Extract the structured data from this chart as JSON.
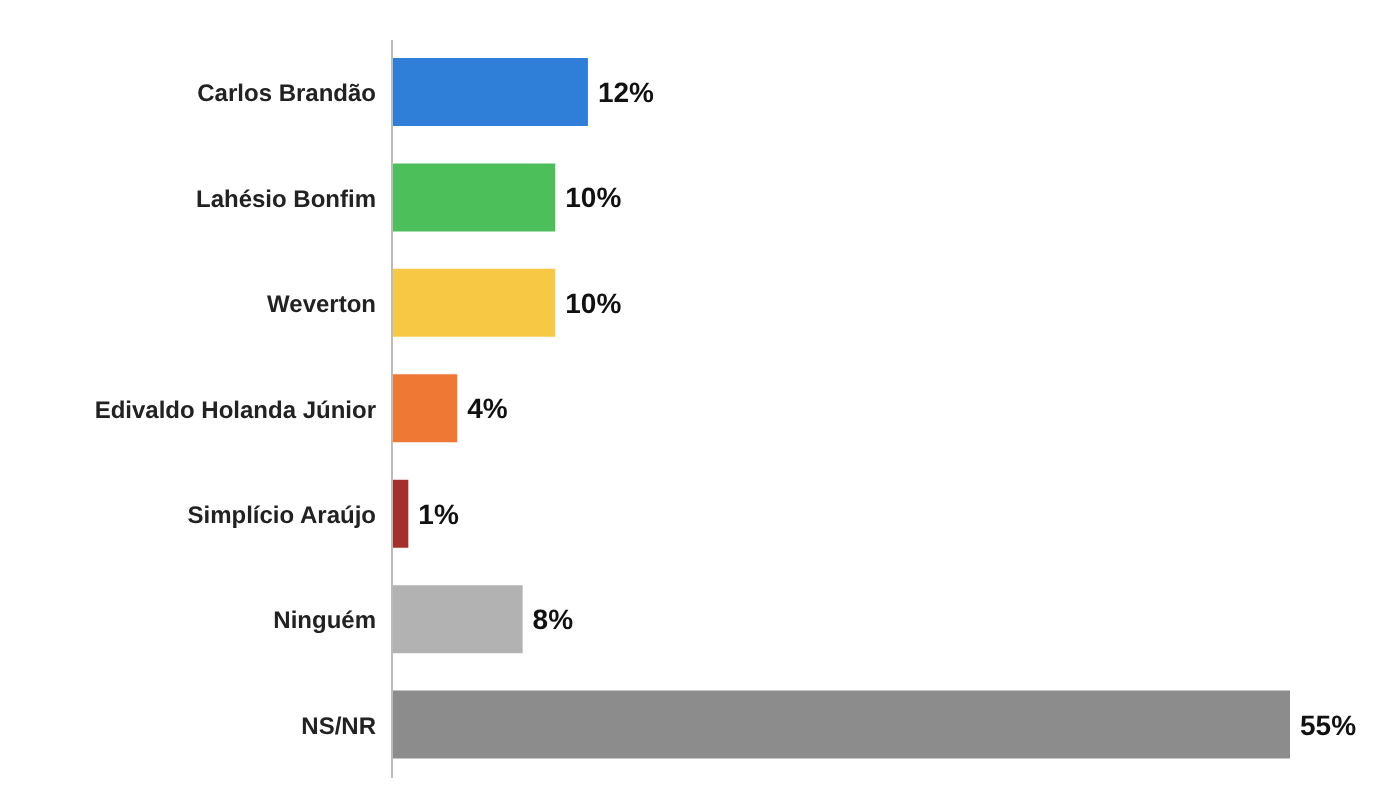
{
  "chart_data": {
    "type": "bar",
    "orientation": "horizontal",
    "categories": [
      "Carlos Brandão",
      "Lahésio Bonfim",
      "Weverton",
      "Edivaldo Holanda Júnior",
      "Simplício Araújo",
      "Ninguém",
      "NS/NR"
    ],
    "values": [
      12,
      10,
      10,
      4,
      1,
      8,
      55
    ],
    "colors": [
      "#2f7fd8",
      "#4cbf5a",
      "#f7c843",
      "#ee7834",
      "#a3302c",
      "#b2b2b2",
      "#8c8c8c"
    ],
    "value_labels": [
      "12%",
      "10%",
      "10%",
      "4%",
      "1%",
      "8%",
      "55%"
    ]
  }
}
